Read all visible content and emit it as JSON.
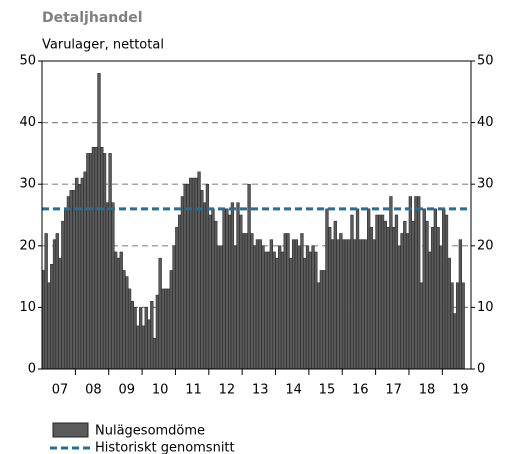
{
  "chart_data": {
    "type": "bar",
    "title": "Detaljhandel",
    "subtitle": "Varulager, nettotal",
    "categories": [
      null,
      null,
      null,
      null,
      null,
      null,
      "07",
      null,
      null,
      null,
      null,
      null,
      null,
      null,
      null,
      null,
      null,
      null,
      "08",
      null,
      null,
      null,
      null,
      null,
      null,
      null,
      null,
      null,
      null,
      null,
      "09",
      null,
      null,
      null,
      null,
      null,
      null,
      null,
      null,
      null,
      null,
      null,
      "10",
      null,
      null,
      null,
      null,
      null,
      null,
      null,
      null,
      null,
      null,
      null,
      "11",
      null,
      null,
      null,
      null,
      null,
      null,
      null,
      null,
      null,
      null,
      null,
      "12",
      null,
      null,
      null,
      null,
      null,
      null,
      null,
      null,
      null,
      null,
      null,
      "13",
      null,
      null,
      null,
      null,
      null,
      null,
      null,
      null,
      null,
      null,
      null,
      "14",
      null,
      null,
      null,
      null,
      null,
      null,
      null,
      null,
      null,
      null,
      null,
      "15",
      null,
      null,
      null,
      null,
      null,
      null,
      null,
      null,
      null,
      null,
      null,
      "16",
      null,
      null,
      null,
      null,
      null,
      null,
      null,
      null,
      null,
      null,
      null,
      "17",
      null,
      null,
      null,
      null,
      null,
      null,
      null,
      null,
      null,
      null,
      null,
      "18",
      null,
      null,
      null,
      null,
      null,
      null,
      null,
      null,
      null,
      null,
      null,
      "19",
      null
    ],
    "series": [
      {
        "name": "Nulägesomdöme",
        "color": "#5a5a5a",
        "values": [
          16,
          22,
          14,
          17,
          21,
          22,
          18,
          24,
          26,
          28,
          29,
          29,
          31,
          30,
          31,
          32,
          35,
          35,
          36,
          36,
          48,
          36,
          35,
          27,
          35,
          27,
          19,
          18,
          19,
          16,
          15,
          13,
          11,
          10,
          7,
          10,
          7,
          10,
          8,
          11,
          5,
          12,
          18,
          13,
          13,
          13,
          16,
          20,
          23,
          25,
          28,
          30,
          30,
          31,
          31,
          31,
          32,
          29,
          27,
          30,
          25,
          26,
          24,
          20,
          20,
          26,
          26,
          25,
          27,
          20,
          27,
          25,
          22,
          22,
          30,
          22,
          20,
          21,
          21,
          20,
          19,
          19,
          21,
          19,
          18,
          20,
          19,
          22,
          22,
          18,
          21,
          21,
          20,
          22,
          18,
          20,
          19,
          20,
          19,
          14,
          16,
          16,
          26,
          23,
          21,
          24,
          21,
          22,
          21,
          21,
          21,
          25,
          21,
          26,
          21,
          21,
          21,
          26,
          23,
          21,
          25,
          25,
          25,
          24,
          23,
          28,
          23,
          25,
          20,
          22,
          24,
          22,
          28,
          24,
          28,
          28,
          14,
          26,
          24,
          19,
          23,
          26,
          23,
          20,
          26,
          25,
          18,
          14,
          9,
          14,
          21,
          14
        ]
      }
    ],
    "reference_line": {
      "name": "Historiskt genomsnitt",
      "value": 26,
      "color": "#1f6f9f"
    },
    "ylim": [
      0,
      50
    ],
    "yticks": [
      0,
      10,
      20,
      30,
      40,
      50
    ],
    "grid": true
  }
}
